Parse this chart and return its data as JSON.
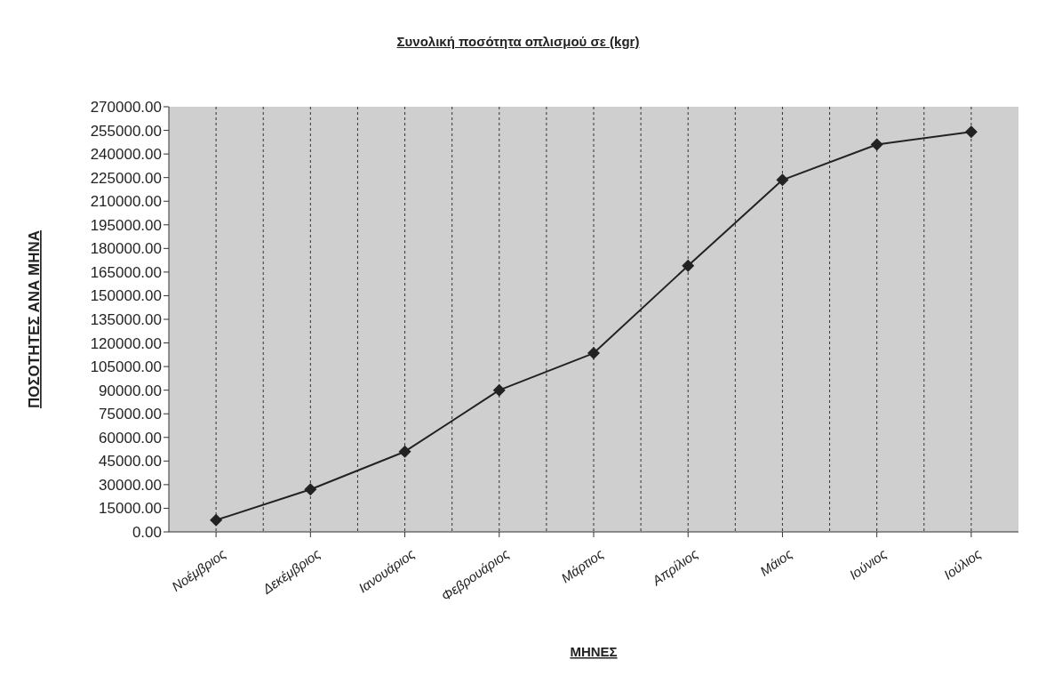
{
  "chart_data": {
    "type": "line",
    "title": "Συνολική ποσότητα οπλισμού σε (kgr)",
    "xlabel": "ΜΗΝΕΣ",
    "ylabel": "ΠΟΣΟΤΗΤΕΣ ΑΝΑ ΜΗΝΑ",
    "categories": [
      "Νοέμβριος",
      "Δεκέμβριος",
      "Ιανουάριος",
      "Φεβρουάριος",
      "Μάρτιος",
      "Απρίλιος",
      "Μάιος",
      "Ιούνιος",
      "Ιούλιος"
    ],
    "series": [
      {
        "color": "#222222",
        "values": [
          7500,
          27000,
          51000,
          90000,
          113500,
          169000,
          223500,
          246000,
          254000
        ]
      }
    ],
    "ylim": [
      0,
      270000
    ],
    "yticks": [
      {
        "value": 0,
        "label": "0.00"
      },
      {
        "value": 15000,
        "label": "15000.00"
      },
      {
        "value": 30000,
        "label": "30000.00"
      },
      {
        "value": 45000,
        "label": "45000.00"
      },
      {
        "value": 60000,
        "label": "60000.00"
      },
      {
        "value": 75000,
        "label": "75000.00"
      },
      {
        "value": 90000,
        "label": "90000.00"
      },
      {
        "value": 105000,
        "label": "105000.00"
      },
      {
        "value": 120000,
        "label": "120000.00"
      },
      {
        "value": 135000,
        "label": "135000.00"
      },
      {
        "value": 150000,
        "label": "150000.00"
      },
      {
        "value": 165000,
        "label": "165000.00"
      },
      {
        "value": 180000,
        "label": "180000.00"
      },
      {
        "value": 195000,
        "label": "195000.00"
      },
      {
        "value": 210000,
        "label": "210000.00"
      },
      {
        "value": 225000,
        "label": "225000.00"
      },
      {
        "value": 240000,
        "label": "240000.00"
      },
      {
        "value": 255000,
        "label": "255000.00"
      },
      {
        "value": 270000,
        "label": "270000.00"
      }
    ],
    "grid": "x",
    "legend": false,
    "marker": "diamond",
    "line_style": "solid"
  }
}
